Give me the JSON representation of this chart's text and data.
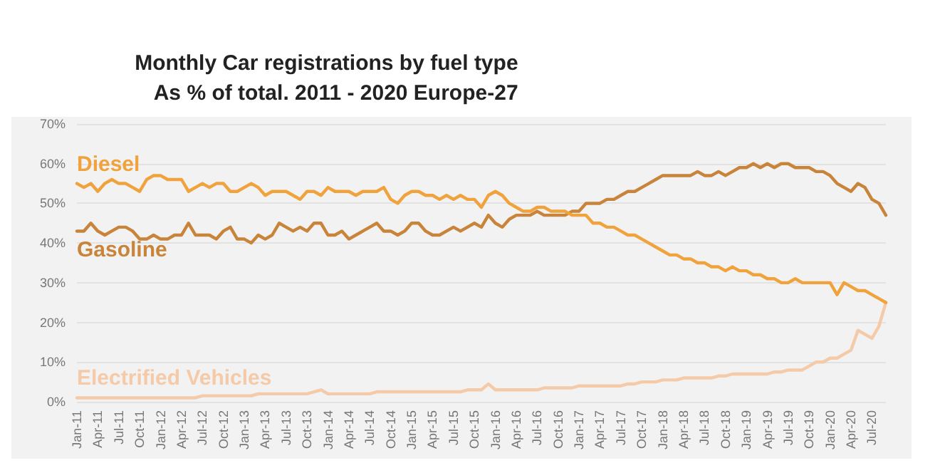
{
  "chart_data": {
    "type": "line",
    "title": "Monthly Car registrations by fuel type",
    "subtitle": "As % of total. 2011 - 2020 Europe-27",
    "categories": [
      "Jan-11",
      null,
      null,
      "Apr-11",
      null,
      null,
      "Jul-11",
      null,
      null,
      "Oct-11",
      null,
      null,
      "Jan-12",
      null,
      null,
      "Apr-12",
      null,
      null,
      "Jul-12",
      null,
      null,
      "Oct-12",
      null,
      null,
      "Jan-13",
      null,
      null,
      "Apr-13",
      null,
      null,
      "Jul-13",
      null,
      null,
      "Oct-13",
      null,
      null,
      "Jan-14",
      null,
      null,
      "Apr-14",
      null,
      null,
      "Jul-14",
      null,
      null,
      "Oct-14",
      null,
      null,
      "Jan-15",
      null,
      null,
      "Apr-15",
      null,
      null,
      "Jul-15",
      null,
      null,
      "Oct-15",
      null,
      null,
      "Jan-16",
      null,
      null,
      "Apr-16",
      null,
      null,
      "Jul-16",
      null,
      null,
      "Oct-16",
      null,
      null,
      "Jan-17",
      null,
      null,
      "Apr-17",
      null,
      null,
      "Jul-17",
      null,
      null,
      "Oct-17",
      null,
      null,
      "Jan-18",
      null,
      null,
      "Apr-18",
      null,
      null,
      "Jul-18",
      null,
      null,
      "Oct-18",
      null,
      null,
      "Jan-19",
      null,
      null,
      "Apr-19",
      null,
      null,
      "Jul-19",
      null,
      null,
      "Oct-19",
      null,
      null,
      "Jan-20",
      null,
      null,
      "Apr-20",
      null,
      null,
      "Jul-20",
      null,
      null
    ],
    "series": [
      {
        "name": "Diesel",
        "color": "#f0a23c",
        "values": [
          55,
          54,
          55,
          53,
          55,
          56,
          55,
          55,
          54,
          53,
          56,
          57,
          57,
          56,
          56,
          56,
          53,
          54,
          55,
          54,
          55,
          55,
          53,
          53,
          54,
          55,
          54,
          52,
          53,
          53,
          53,
          52,
          51,
          53,
          53,
          52,
          54,
          53,
          53,
          53,
          52,
          53,
          53,
          53,
          54,
          51,
          50,
          52,
          53,
          53,
          52,
          52,
          51,
          52,
          51,
          52,
          51,
          51,
          49,
          52,
          53,
          52,
          50,
          49,
          48,
          48,
          49,
          49,
          48,
          48,
          48,
          47,
          47,
          47,
          45,
          45,
          44,
          44,
          43,
          42,
          42,
          41,
          40,
          39,
          38,
          37,
          37,
          36,
          36,
          35,
          35,
          34,
          34,
          33,
          34,
          33,
          33,
          32,
          32,
          31,
          31,
          30,
          30,
          31,
          30,
          30,
          30,
          30,
          30,
          27,
          30,
          29,
          28,
          28,
          27,
          26,
          25
        ]
      },
      {
        "name": "Gasoline",
        "color": "#c8843a",
        "values": [
          43,
          43,
          45,
          43,
          42,
          43,
          44,
          44,
          43,
          41,
          41,
          42,
          41,
          41,
          42,
          42,
          45,
          42,
          42,
          42,
          41,
          43,
          44,
          41,
          41,
          40,
          42,
          41,
          42,
          45,
          44,
          43,
          44,
          43,
          45,
          45,
          42,
          42,
          43,
          41,
          42,
          43,
          44,
          45,
          43,
          43,
          42,
          43,
          45,
          45,
          43,
          42,
          42,
          43,
          44,
          43,
          44,
          45,
          44,
          47,
          45,
          44,
          46,
          47,
          47,
          47,
          48,
          47,
          47,
          47,
          47,
          48,
          48,
          50,
          50,
          50,
          51,
          51,
          52,
          53,
          53,
          54,
          55,
          56,
          57,
          57,
          57,
          57,
          57,
          58,
          57,
          57,
          58,
          57,
          58,
          59,
          59,
          60,
          59,
          60,
          59,
          60,
          60,
          59,
          59,
          59,
          58,
          58,
          57,
          55,
          54,
          53,
          55,
          54,
          51,
          50,
          47
        ]
      },
      {
        "name": "Electrified Vehicles",
        "color": "#f5caa8",
        "values": [
          1,
          1,
          1,
          1,
          1,
          1,
          1,
          1,
          1,
          1,
          1,
          1,
          1,
          1,
          1,
          1,
          1,
          1,
          1.5,
          1.5,
          1.5,
          1.5,
          1.5,
          1.5,
          1.5,
          1.5,
          2,
          2,
          2,
          2,
          2,
          2,
          2,
          2,
          2.5,
          3,
          2,
          2,
          2,
          2,
          2,
          2,
          2,
          2.5,
          2.5,
          2.5,
          2.5,
          2.5,
          2.5,
          2.5,
          2.5,
          2.5,
          2.5,
          2.5,
          2.5,
          2.5,
          3,
          3,
          3,
          4.5,
          3,
          3,
          3,
          3,
          3,
          3,
          3,
          3.5,
          3.5,
          3.5,
          3.5,
          3.5,
          4,
          4,
          4,
          4,
          4,
          4,
          4,
          4.5,
          4.5,
          5,
          5,
          5,
          5.5,
          5.5,
          5.5,
          6,
          6,
          6,
          6,
          6,
          6.5,
          6.5,
          7,
          7,
          7,
          7,
          7,
          7,
          7.5,
          7.5,
          8,
          8,
          8,
          9,
          10,
          10,
          11,
          11,
          12,
          13,
          18,
          17,
          16,
          19,
          25
        ]
      }
    ],
    "ylim": [
      0,
      70
    ],
    "yticks": [
      {
        "value": 0,
        "label": "0%"
      },
      {
        "value": 10,
        "label": "10%"
      },
      {
        "value": 20,
        "label": "20%"
      },
      {
        "value": 30,
        "label": "30%"
      },
      {
        "value": 40,
        "label": "40%"
      },
      {
        "value": 50,
        "label": "50%"
      },
      {
        "value": 60,
        "label": "60%"
      },
      {
        "value": 70,
        "label": "70%"
      }
    ],
    "grid": "y",
    "legend": false,
    "marker": "none",
    "line_style": "solid"
  }
}
